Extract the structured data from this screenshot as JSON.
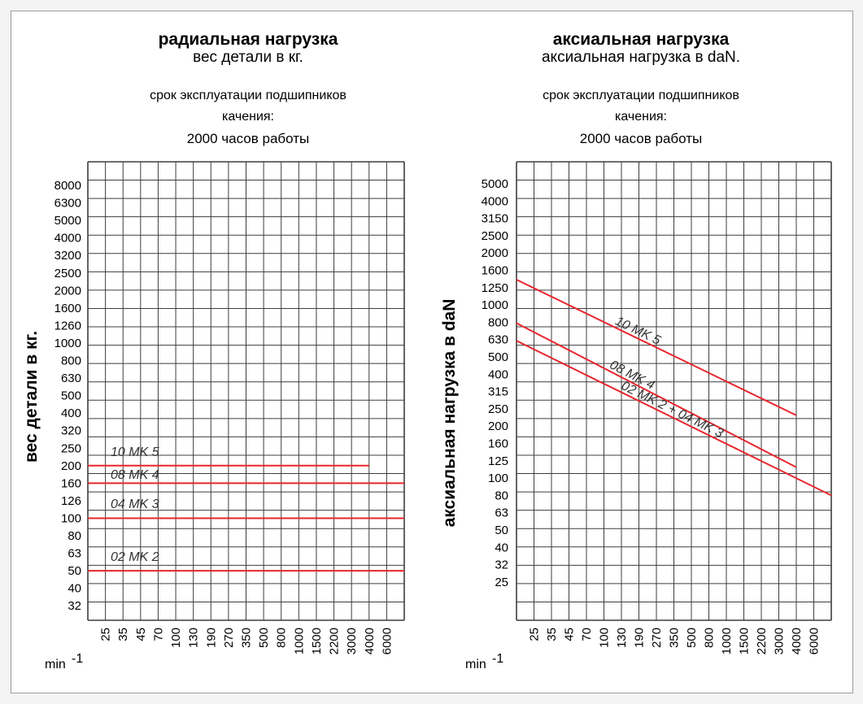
{
  "chart_data": [
    {
      "type": "line",
      "title": "радиальная нагрузка",
      "subtitle": "вес детали в кг.",
      "note_lines": [
        "срок эксплуатации подшипников",
        "качения:",
        "2000 часов работы"
      ],
      "ylabel": "вес детали в кг.",
      "xlabel": "min",
      "xlabel_sup": "-1",
      "y_ticks": [
        "8000",
        "6300",
        "5000",
        "4000",
        "3200",
        "2500",
        "2000",
        "1600",
        "1260",
        "1000",
        "800",
        "630",
        "500",
        "400",
        "320",
        "250",
        "200",
        "160",
        "126",
        "100",
        "80",
        "63",
        "50",
        "40",
        "32"
      ],
      "x_ticks": [
        "25",
        "35",
        "45",
        "70",
        "100",
        "130",
        "190",
        "270",
        "350",
        "500",
        "800",
        "1000",
        "1500",
        "2200",
        "3000",
        "4000",
        "6000"
      ],
      "series": [
        {
          "name": "10 MK 5",
          "x": [
            "25",
            "4000"
          ],
          "y": [
            200,
            200
          ]
        },
        {
          "name": "08 MK 4",
          "x": [
            "25",
            "6000"
          ],
          "y": [
            160,
            160
          ]
        },
        {
          "name": "04 MK 3",
          "x": [
            "25",
            "6000"
          ],
          "y": [
            100,
            100
          ]
        },
        {
          "name": "02 MK 2",
          "x": [
            "25",
            "6000"
          ],
          "y": [
            50,
            50
          ]
        }
      ]
    },
    {
      "type": "line",
      "title": "аксиальная нагрузка",
      "subtitle": "аксиальная нагрузка в daN.",
      "note_lines": [
        "срок эксплуатации подшипников",
        "качения:",
        "2000 часов работы"
      ],
      "ylabel": "аксиальная нагрузка в daN",
      "xlabel": "min",
      "xlabel_sup": "-1",
      "y_ticks": [
        "5000",
        "4000",
        "3150",
        "2500",
        "2000",
        "1600",
        "1250",
        "1000",
        "800",
        "630",
        "500",
        "400",
        "315",
        "250",
        "200",
        "160",
        "125",
        "100",
        "80",
        "63",
        "50",
        "40",
        "32",
        "25"
      ],
      "x_ticks": [
        "25",
        "35",
        "45",
        "70",
        "100",
        "130",
        "190",
        "270",
        "350",
        "500",
        "800",
        "1000",
        "1500",
        "2200",
        "3000",
        "4000",
        "6000"
      ],
      "series": [
        {
          "name": "10 MK 5",
          "x": [
            "25",
            "4000"
          ],
          "y": [
            1400,
            230
          ]
        },
        {
          "name": "08 MK 4",
          "x": [
            "25",
            "4000"
          ],
          "y": [
            790,
            115
          ]
        },
        {
          "name": "02 MK 2 + 04 MK 3",
          "x": [
            "25",
            "6000"
          ],
          "y": [
            620,
            80
          ]
        }
      ]
    }
  ],
  "colors": {
    "grid": "#3d3d3d",
    "series": "#e8262d",
    "frame": "#9a9a9a"
  }
}
